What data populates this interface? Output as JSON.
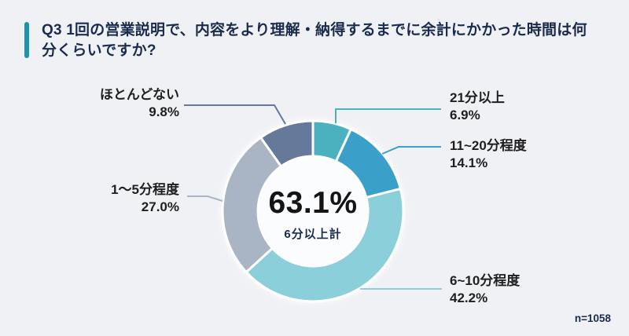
{
  "header": {
    "question": "Q3 1回の営業説明で、内容をより理解・納得するまでに余計にかかった時間は何分くらいですか?"
  },
  "chart_data": {
    "type": "pie",
    "subtype": "donut",
    "title": "Q3 1回の営業説明で、内容をより理解・納得するまでに余計にかかった時間は何分くらいですか?",
    "start_angle_deg": 0,
    "direction": "clockwise",
    "legend_position": "callout-labels",
    "center_label": {
      "value": "63.1%",
      "caption": "6分以上計"
    },
    "segments": [
      {
        "label": "21分以上",
        "value": 6.9,
        "pct_label": "6.9%",
        "color": "#4bb1be"
      },
      {
        "label": "11~20分程度",
        "value": 14.1,
        "pct_label": "14.1%",
        "color": "#3ba0c9"
      },
      {
        "label": "6~10分程度",
        "value": 42.2,
        "pct_label": "42.2%",
        "color": "#8bcfdb"
      },
      {
        "label": "1〜5分程度",
        "value": 27.0,
        "pct_label": "27.0%",
        "color": "#a9b4c4"
      },
      {
        "label": "ほとんどない",
        "value": 9.8,
        "pct_label": "9.8%",
        "color": "#66799a"
      }
    ],
    "sample_size_label": "n=1058"
  },
  "colors": {
    "background": "#eff1f5",
    "accent_bar": "#1e94ab",
    "title_text": "#1b2b4b",
    "label_text": "#1f1f1f",
    "center_value": "#141414",
    "center_caption": "#1b2b4b",
    "donut_hole": "#fbfcfe"
  }
}
